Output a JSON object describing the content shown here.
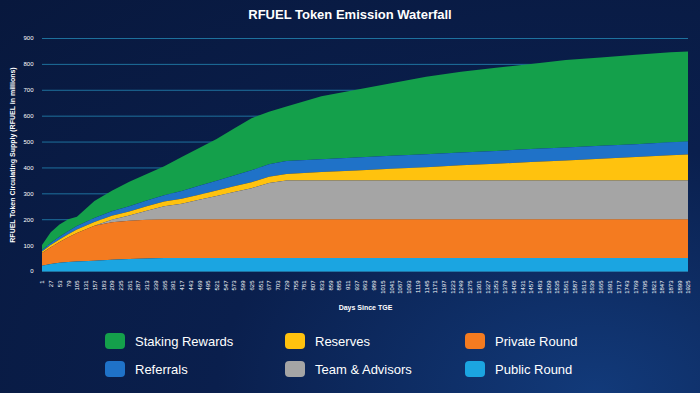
{
  "chart_data": {
    "type": "area",
    "title": "RFUEL Token Emission Waterfall",
    "x_label": "Days Since TGE",
    "y_label": "RFUEL Token Circulating Supply (RFUEL in millions)",
    "stacked": true,
    "grid": true,
    "legend": "bottom",
    "xlim": [
      1,
      1925
    ],
    "ylim": [
      0,
      900
    ],
    "xticks": [
      1,
      27,
      53,
      79,
      105,
      131,
      157,
      183,
      209,
      235,
      261,
      287,
      313,
      339,
      365,
      391,
      417,
      443,
      469,
      495,
      521,
      547,
      573,
      599,
      625,
      651,
      677,
      703,
      729,
      755,
      781,
      807,
      833,
      859,
      885,
      911,
      937,
      963,
      989,
      1015,
      1041,
      1067,
      1093,
      1119,
      1145,
      1171,
      1197,
      1223,
      1249,
      1275,
      1301,
      1327,
      1353,
      1379,
      1405,
      1431,
      1457,
      1483,
      1509,
      1535,
      1561,
      1587,
      1613,
      1639,
      1665,
      1691,
      1717,
      1743,
      1769,
      1795,
      1821,
      1847,
      1873,
      1899,
      1925
    ],
    "yticks": [
      0,
      100,
      200,
      300,
      400,
      500,
      600,
      700,
      800,
      900
    ],
    "x": [
      1,
      27,
      53,
      79,
      105,
      157,
      209,
      261,
      313,
      365,
      417,
      469,
      521,
      573,
      625,
      677,
      729,
      833,
      937,
      1041,
      1145,
      1249,
      1353,
      1457,
      1561,
      1665,
      1769,
      1873,
      1925
    ],
    "series": [
      {
        "name": "Staking Rewards",
        "color": "#14a04b",
        "values": [
          20,
          42,
          48,
          46,
          36,
          65,
          79,
          95,
          103,
          112,
          131,
          146,
          161,
          181,
          201,
          203,
          210,
          243,
          262,
          280,
          299,
          312,
          321,
          329,
          338,
          341,
          345,
          348,
          348
        ]
      },
      {
        "name": "Referrals",
        "color": "#1f72c8",
        "values": [
          5,
          8,
          10,
          12,
          14,
          16,
          18,
          20,
          22,
          25,
          30,
          34,
          38,
          42,
          46,
          48,
          50,
          50,
          50,
          50,
          50,
          50,
          50,
          50,
          50,
          50,
          50,
          50,
          50
        ]
      },
      {
        "name": "Reserves",
        "color": "#ffc20e",
        "values": [
          5,
          8,
          10,
          12,
          13,
          14,
          15,
          16,
          17,
          18,
          19,
          20,
          21,
          22,
          23,
          24,
          25,
          32,
          38,
          45,
          51,
          58,
          64,
          71,
          77,
          84,
          90,
          97,
          100
        ]
      },
      {
        "name": "Team & Advisors",
        "color": "#a5a5a5",
        "values": [
          0,
          0,
          0,
          0,
          0,
          0,
          10,
          20,
          35,
          50,
          60,
          75,
          90,
          105,
          120,
          140,
          150,
          150,
          150,
          150,
          150,
          150,
          150,
          150,
          150,
          150,
          150,
          150,
          150
        ]
      },
      {
        "name": "Private Round",
        "color": "#f47b20",
        "values": [
          50,
          65,
          80,
          95,
          110,
          135,
          145,
          148,
          150,
          150,
          150,
          150,
          150,
          150,
          150,
          150,
          150,
          150,
          150,
          150,
          150,
          150,
          150,
          150,
          150,
          150,
          150,
          150,
          150
        ]
      },
      {
        "name": "Public Round",
        "color": "#1ba5e1",
        "values": [
          20,
          27,
          32,
          35,
          37,
          40,
          43,
          46,
          48,
          50,
          50,
          50,
          50,
          50,
          50,
          50,
          50,
          50,
          50,
          50,
          50,
          50,
          50,
          50,
          50,
          50,
          50,
          50,
          50
        ]
      }
    ]
  }
}
